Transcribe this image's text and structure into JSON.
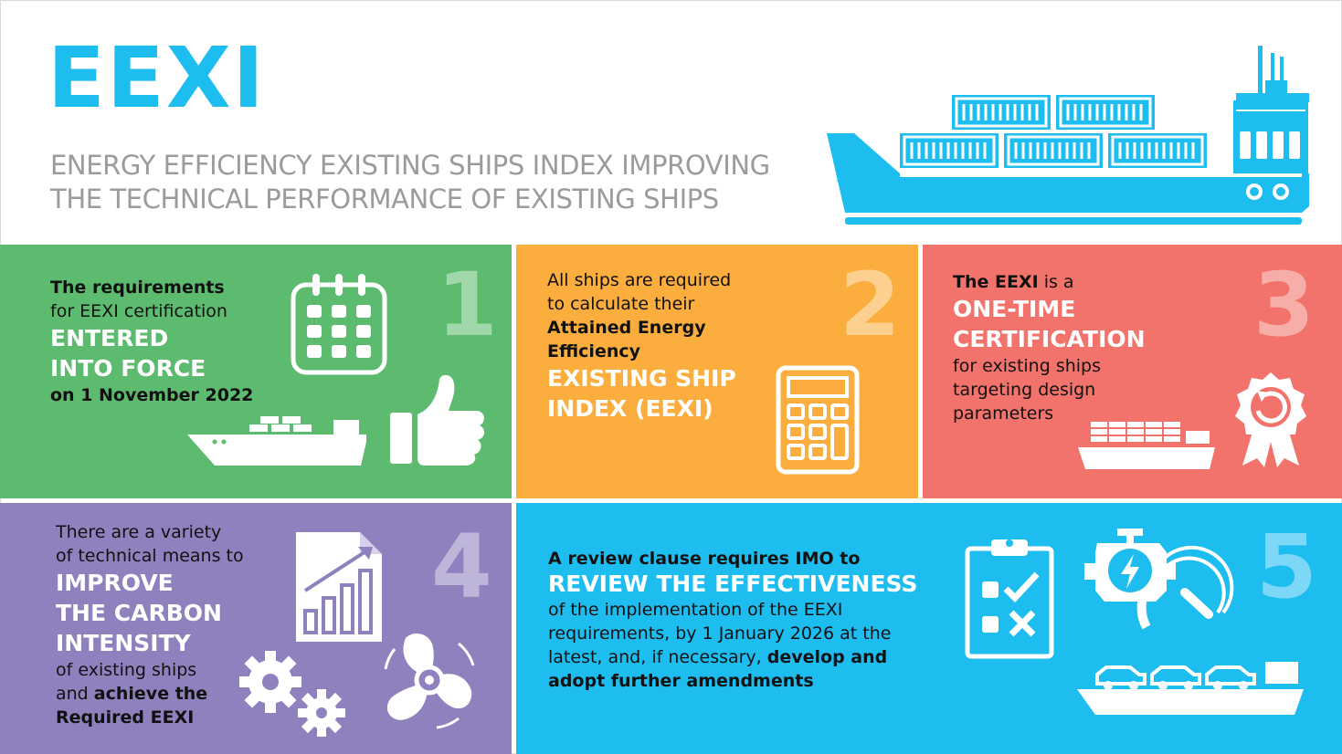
{
  "header": {
    "title": "EEXI",
    "subtitle_line1": "ENERGY EFFICIENCY EXISTING SHIPS INDEX IMPROVING",
    "subtitle_line2": "THE TECHNICAL PERFORMANCE OF EXISTING SHIPS"
  },
  "colors": {
    "accent_blue": "#1ebdf0",
    "green": "#5cbb6e",
    "orange": "#fbae3e",
    "coral": "#f2736b",
    "purple": "#8e81bd",
    "grey_text": "#9b9b9b"
  },
  "panels": [
    {
      "number": "1",
      "line1": "The requirements",
      "line2": "for EEXI certification",
      "big1": "ENTERED",
      "big2": "INTO FORCE",
      "line3": "on 1 November 2022",
      "icons": [
        "calendar-icon",
        "cargo-ship-icon",
        "thumbs-up-icon"
      ]
    },
    {
      "number": "2",
      "line1": "All ships are required",
      "line2": "to calculate their",
      "line3": "Attained Energy",
      "line4": "Efficiency",
      "big1": "EXISTING SHIP",
      "big2": "INDEX (EEXI)",
      "icons": [
        "calculator-icon"
      ]
    },
    {
      "number": "3",
      "line1_bold": "The EEXI",
      "line1_rest": " is a",
      "big1": "ONE-TIME",
      "big2": "CERTIFICATION",
      "line2": "for existing ships",
      "line3": "targeting design",
      "line4": "parameters",
      "icons": [
        "container-ship-icon",
        "award-badge-icon"
      ]
    },
    {
      "number": "4",
      "line1": "There are a  variety",
      "line2": "of technical means to",
      "big1": "IMPROVE",
      "big2": "THE CARBON",
      "big3": "INTENSITY",
      "line3": "of existing ships",
      "line4_rest": "and ",
      "line4_bold": "achieve the",
      "line5": "Required EEXI",
      "icons": [
        "growth-chart-document-icon",
        "gears-icon",
        "propeller-icon"
      ]
    },
    {
      "number": "5",
      "line1": "A review clause requires IMO to",
      "big1": "REVIEW THE EFFECTIVENESS",
      "line2": "of the implementation of the EEXI",
      "line3": "requirements, by 1 January 2026 at the",
      "line4_rest": "latest, and, if necessary, ",
      "line4_bold": "develop and",
      "line5": "adopt further amendments",
      "icons": [
        "checklist-clipboard-icon",
        "engine-icon",
        "gauge-icon",
        "car-carrier-ship-icon"
      ]
    }
  ]
}
